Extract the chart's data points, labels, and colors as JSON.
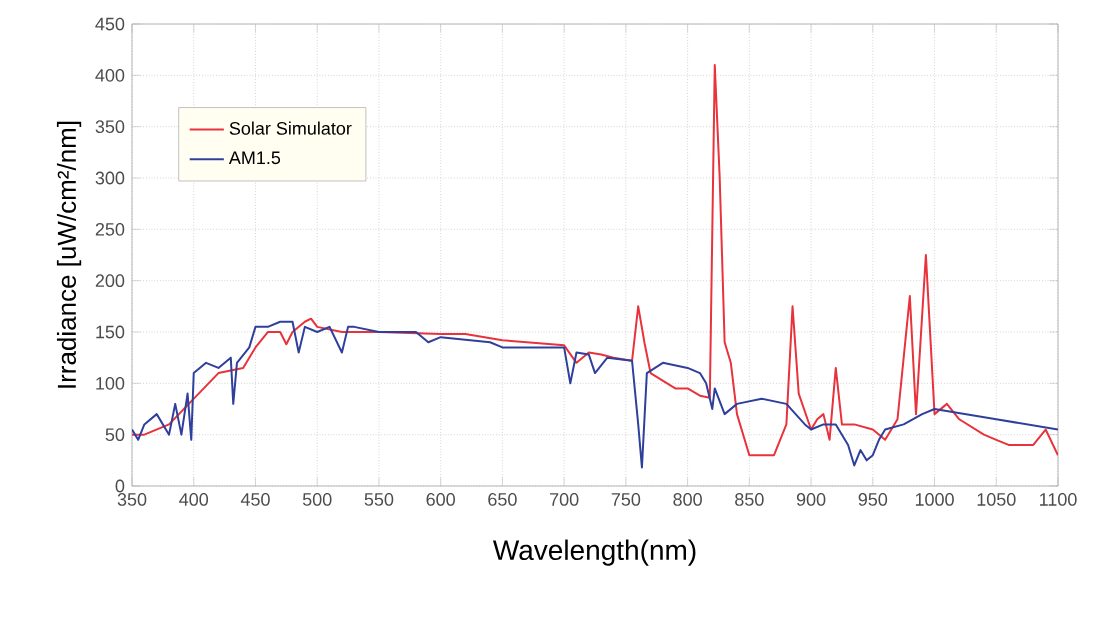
{
  "chart_data": {
    "type": "line",
    "xlabel": "Wavelength(nm)",
    "ylabel": "Irradiance  [uW/cm²/nm]",
    "xlim": [
      350,
      1100
    ],
    "ylim": [
      0,
      450
    ],
    "xticks": [
      350,
      400,
      450,
      500,
      550,
      600,
      650,
      700,
      750,
      800,
      850,
      900,
      950,
      1000,
      1050,
      1100
    ],
    "yticks": [
      0,
      50,
      100,
      150,
      200,
      250,
      300,
      350,
      400,
      450
    ],
    "grid": true,
    "legend": "top left",
    "line_style": "solid",
    "marker": "none",
    "series": [
      {
        "name": "Solar Simulator",
        "color": "#e8323c",
        "x": [
          350,
          360,
          380,
          400,
          420,
          440,
          450,
          460,
          470,
          475,
          480,
          490,
          495,
          500,
          520,
          550,
          600,
          620,
          650,
          700,
          710,
          720,
          730,
          740,
          755,
          760,
          765,
          770,
          790,
          800,
          810,
          818,
          822,
          826,
          830,
          835,
          840,
          850,
          870,
          880,
          885,
          890,
          900,
          905,
          910,
          915,
          920,
          925,
          935,
          950,
          960,
          970,
          980,
          985,
          993,
          1000,
          1010,
          1020,
          1040,
          1050,
          1060,
          1080,
          1090,
          1100
        ],
        "values": [
          50,
          50,
          60,
          85,
          110,
          115,
          135,
          150,
          150,
          138,
          150,
          160,
          163,
          155,
          150,
          150,
          148,
          148,
          142,
          137,
          120,
          130,
          128,
          125,
          122,
          175,
          140,
          110,
          95,
          95,
          88,
          86,
          410,
          300,
          140,
          120,
          70,
          30,
          30,
          60,
          175,
          90,
          55,
          65,
          70,
          45,
          115,
          60,
          60,
          55,
          45,
          65,
          185,
          70,
          225,
          70,
          80,
          65,
          50,
          45,
          40,
          40,
          55,
          30
        ]
      },
      {
        "name": "AM1.5",
        "color": "#2e3f9c",
        "x": [
          350,
          355,
          360,
          370,
          380,
          385,
          390,
          395,
          398,
          400,
          410,
          420,
          430,
          432,
          435,
          445,
          450,
          460,
          470,
          480,
          485,
          490,
          500,
          510,
          520,
          525,
          530,
          550,
          580,
          590,
          600,
          640,
          650,
          700,
          705,
          710,
          720,
          725,
          735,
          755,
          760,
          763,
          767,
          780,
          800,
          810,
          815,
          820,
          822,
          830,
          840,
          860,
          880,
          895,
          900,
          910,
          920,
          930,
          935,
          940,
          945,
          950,
          955,
          960,
          975,
          990,
          1000,
          1050,
          1100
        ],
        "values": [
          55,
          45,
          60,
          70,
          50,
          80,
          50,
          90,
          45,
          110,
          120,
          115,
          125,
          80,
          120,
          135,
          155,
          155,
          160,
          160,
          130,
          155,
          150,
          155,
          130,
          155,
          155,
          150,
          150,
          140,
          145,
          140,
          135,
          135,
          100,
          130,
          128,
          110,
          125,
          122,
          60,
          18,
          110,
          120,
          115,
          110,
          100,
          75,
          95,
          70,
          80,
          85,
          80,
          60,
          55,
          60,
          60,
          40,
          20,
          35,
          25,
          30,
          45,
          55,
          60,
          70,
          75,
          65,
          55
        ]
      }
    ]
  }
}
